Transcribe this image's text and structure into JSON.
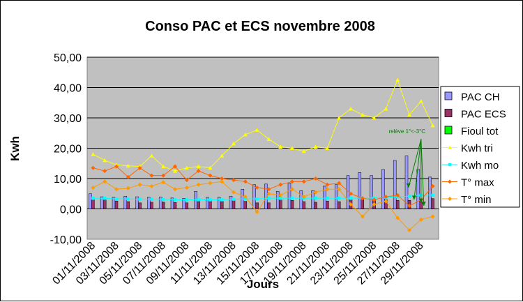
{
  "chart_data": {
    "type": "bar",
    "title": "Conso PAC et ECS novembre 2008",
    "xlabel": "Jours",
    "ylabel": "Kwh",
    "ylim": [
      -10,
      50
    ],
    "yticks": [
      "-10,00",
      "0,00",
      "10,00",
      "20,00",
      "30,00",
      "40,00",
      "50,00"
    ],
    "ytick_values": [
      -10,
      0,
      10,
      20,
      30,
      40,
      50
    ],
    "grid": true,
    "legend_position": "right",
    "categories": [
      "01/11/2008",
      "02/11/2008",
      "03/11/2008",
      "04/11/2008",
      "05/11/2008",
      "06/11/2008",
      "07/11/2008",
      "08/11/2008",
      "09/11/2008",
      "10/11/2008",
      "11/11/2008",
      "12/11/2008",
      "13/11/2008",
      "14/11/2008",
      "15/11/2008",
      "16/11/2008",
      "17/11/2008",
      "18/11/2008",
      "19/11/2008",
      "20/11/2008",
      "21/11/2008",
      "22/11/2008",
      "23/11/2008",
      "24/11/2008",
      "25/11/2008",
      "26/11/2008",
      "27/11/2008",
      "28/11/2008",
      "29/11/2008",
      "30/11/2008"
    ],
    "tick_labels": [
      "01/11/2008",
      "03/11/2008",
      "05/11/2008",
      "07/11/2008",
      "09/11/2008",
      "11/11/2008",
      "13/11/2008",
      "15/11/2008",
      "17/11/2008",
      "19/11/2008",
      "21/11/2008",
      "23/11/2008",
      "25/11/2008",
      "27/11/2008",
      "29/11/2008"
    ],
    "series": [
      {
        "name": "PAC CH",
        "kind": "bar",
        "color": "#9999ff",
        "values": [
          5.0,
          4.0,
          3.8,
          4.2,
          4.0,
          3.8,
          3.9,
          3.6,
          3.5,
          5.8,
          3.8,
          3.8,
          4.2,
          6.5,
          8.0,
          8.2,
          5.8,
          8.5,
          6.0,
          6.0,
          7.5,
          8.0,
          11.0,
          12.0,
          11.0,
          13.0,
          16.0,
          17.5,
          13.0,
          10.5
        ]
      },
      {
        "name": "PAC ECS",
        "kind": "bar",
        "color": "#993366",
        "values": [
          3.2,
          3.0,
          2.6,
          2.4,
          2.0,
          2.2,
          2.2,
          2.1,
          2.0,
          2.8,
          2.8,
          2.6,
          3.0,
          2.5,
          2.0,
          2.0,
          3.2,
          2.8,
          2.4,
          2.2,
          2.6,
          2.4,
          3.2,
          3.4,
          3.0,
          3.0,
          2.8,
          2.8,
          2.4,
          3.4
        ]
      },
      {
        "name": "Fioul tot",
        "kind": "bar",
        "color": "#00ff00",
        "values": [
          0,
          0,
          0,
          0,
          0,
          0,
          0,
          0,
          0,
          0,
          0,
          0,
          0,
          0,
          0,
          0,
          0,
          0,
          0,
          0,
          0,
          0,
          0,
          0,
          0,
          0,
          0,
          0,
          0,
          0
        ]
      },
      {
        "name": "Kwh tri",
        "kind": "line",
        "color": "#ffff00",
        "marker": "triangle",
        "values": [
          18.0,
          16.0,
          14.5,
          14.2,
          14.0,
          17.5,
          14.0,
          12.5,
          13.5,
          14.0,
          13.5,
          17.5,
          21.5,
          24.5,
          26.0,
          23.0,
          20.5,
          20.0,
          19.0,
          20.5,
          20.0,
          30.0,
          33.0,
          31.0,
          30.0,
          33.0,
          42.5,
          31.0,
          35.5,
          27.5
        ]
      },
      {
        "name": "Kwh mo",
        "kind": "line",
        "color": "#00ffff",
        "marker": "square",
        "values": [
          3.5,
          3.5,
          3.3,
          3.3,
          3.2,
          3.2,
          3.1,
          3.0,
          3.0,
          3.0,
          3.0,
          3.0,
          3.2,
          3.3,
          3.3,
          3.5,
          3.5,
          3.5,
          3.5,
          3.5,
          3.5,
          3.5,
          3.5,
          3.6,
          3.6,
          3.8,
          4.0,
          4.2,
          4.5,
          4.5
        ]
      },
      {
        "name": "T° max",
        "kind": "line",
        "color": "#ff6600",
        "marker": "diamond",
        "values": [
          13.5,
          12.5,
          14.0,
          10.5,
          13.5,
          11.0,
          11.0,
          14.0,
          9.5,
          12.5,
          11.0,
          10.0,
          9.5,
          9.0,
          7.0,
          6.5,
          8.0,
          9.0,
          9.0,
          10.0,
          8.0,
          8.5,
          5.0,
          3.5,
          3.0,
          4.0,
          4.5,
          1.0,
          3.0,
          7.5
        ]
      },
      {
        "name": "T° min",
        "kind": "line",
        "color": "#ff9900",
        "marker": "diamond",
        "values": [
          7.0,
          9.0,
          6.5,
          6.8,
          8.0,
          7.5,
          8.8,
          6.5,
          7.0,
          8.0,
          8.5,
          9.0,
          5.5,
          4.0,
          -1.0,
          5.0,
          4.5,
          6.5,
          4.0,
          5.5,
          6.5,
          6.5,
          1.5,
          -2.5,
          1.5,
          2.5,
          -3.0,
          -7.0,
          -3.5,
          -2.5
        ]
      }
    ],
    "annotation": {
      "text": "relève 1°<-3°C",
      "color": "#008000",
      "day_index": 28,
      "value": 23.0
    }
  }
}
